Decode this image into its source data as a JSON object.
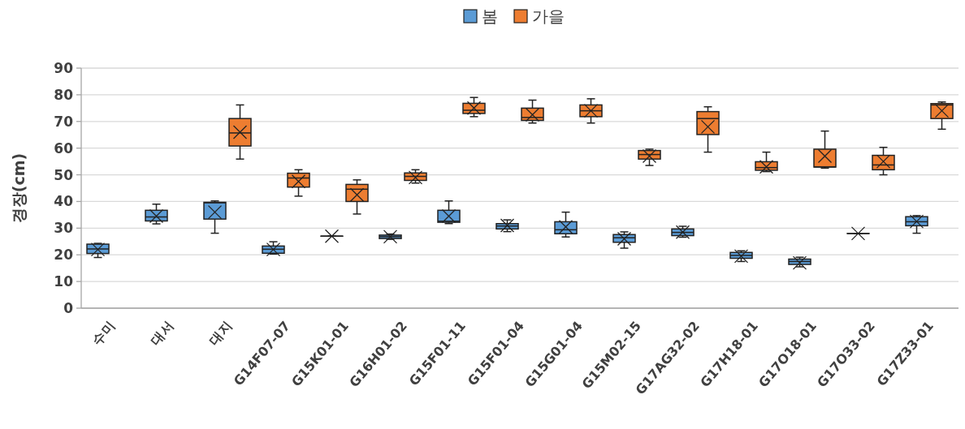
{
  "chart_data": {
    "type": "box",
    "ylabel": "경장(cm)",
    "categories": [
      "수미",
      "대서",
      "대지",
      "G14F07-07",
      "G15K01-01",
      "G16H01-02",
      "G15F01-11",
      "G15F01-04",
      "G15G01-04",
      "G15M02-15",
      "G17AG32-02",
      "G17H18-01",
      "G17O18-01",
      "G17O33-02",
      "G17Z33-01"
    ],
    "ylim": [
      0,
      90
    ],
    "yticks": [
      0,
      10,
      20,
      30,
      40,
      50,
      60,
      70,
      80,
      90
    ],
    "grid": "y",
    "legend": "top",
    "marker": "cross",
    "series": [
      {
        "name": "봄",
        "color": "#5b9bd5",
        "boxes": [
          {
            "low": 19,
            "q1": 20.5,
            "median": 22.2,
            "q3": 24,
            "high": 24.3,
            "mean": 22
          },
          {
            "low": 31.6,
            "q1": 32.7,
            "median": 34.2,
            "q3": 36.7,
            "high": 39,
            "mean": 34.5
          },
          {
            "low": 28.1,
            "q1": 33.4,
            "median": 39.5,
            "q3": 39.7,
            "high": 40.2,
            "mean": 36
          },
          {
            "low": 20.3,
            "q1": 20.6,
            "median": 22.1,
            "q3": 23.3,
            "high": 24.9,
            "mean": 22
          },
          {
            "low": 27,
            "q1": 27,
            "median": 27,
            "q3": 27,
            "high": 27,
            "mean": 27
          },
          {
            "low": 25.8,
            "q1": 26.1,
            "median": 26.8,
            "q3": 27.4,
            "high": 27.8,
            "mean": 26.8
          },
          {
            "low": 31.7,
            "q1": 32.2,
            "median": 32.6,
            "q3": 36.7,
            "high": 40.2,
            "mean": 34.5
          },
          {
            "low": 28.7,
            "q1": 29.7,
            "median": 30.8,
            "q3": 31.7,
            "high": 33.1,
            "mean": 31
          },
          {
            "low": 26.7,
            "q1": 27.9,
            "median": 29.4,
            "q3": 32.4,
            "high": 36,
            "mean": 30.5
          },
          {
            "low": 22.5,
            "q1": 24.7,
            "median": 26.4,
            "q3": 27.6,
            "high": 28.6,
            "mean": 26
          },
          {
            "low": 26.6,
            "q1": 27.2,
            "median": 28.4,
            "q3": 29.7,
            "high": 30.7,
            "mean": 28.5
          },
          {
            "low": 17.5,
            "q1": 18.7,
            "median": 19.8,
            "q3": 20.9,
            "high": 21.5,
            "mean": 19.5
          },
          {
            "low": 15.5,
            "q1": 16.4,
            "median": 17.5,
            "q3": 18.4,
            "high": 19.1,
            "mean": 17
          },
          {
            "low": 28,
            "q1": 28,
            "median": 28,
            "q3": 28,
            "high": 28,
            "mean": 28
          },
          {
            "low": 28.1,
            "q1": 30.9,
            "median": 32.4,
            "q3": 34.3,
            "high": 34.7,
            "mean": 32.5
          }
        ]
      },
      {
        "name": "가을",
        "color": "#ed7d31",
        "boxes": [
          null,
          null,
          {
            "low": 55.9,
            "q1": 60.8,
            "median": 65.7,
            "q3": 71.1,
            "high": 76.2,
            "mean": 66
          },
          {
            "low": 42,
            "q1": 45.4,
            "median": 48.8,
            "q3": 50.6,
            "high": 51.9,
            "mean": 47.5
          },
          {
            "low": 35.3,
            "q1": 40,
            "median": 44.6,
            "q3": 46.4,
            "high": 48.1,
            "mean": 42.5
          },
          {
            "low": 46.9,
            "q1": 47.9,
            "median": 49.4,
            "q3": 50.7,
            "high": 51.9,
            "mean": 49
          },
          {
            "low": 71.8,
            "q1": 73,
            "median": 74.2,
            "q3": 76.8,
            "high": 79,
            "mean": 75
          },
          {
            "low": 69.4,
            "q1": 70.4,
            "median": 71.5,
            "q3": 75,
            "high": 78,
            "mean": 72.5
          },
          {
            "low": 69.4,
            "q1": 71.8,
            "median": 74,
            "q3": 76.2,
            "high": 78.5,
            "mean": 74
          },
          {
            "low": 53.5,
            "q1": 55.9,
            "median": 57.6,
            "q3": 59.1,
            "high": 59.6,
            "mean": 57
          },
          {
            "low": 58.5,
            "q1": 65.1,
            "median": 71.1,
            "q3": 73.7,
            "high": 75.5,
            "mean": 68
          },
          {
            "low": 51.2,
            "q1": 51.7,
            "median": 52.7,
            "q3": 54.9,
            "high": 58.5,
            "mean": 53
          },
          {
            "low": 52.5,
            "q1": 52.9,
            "median": 53,
            "q3": 59.6,
            "high": 66.4,
            "mean": 57
          },
          {
            "low": 50,
            "q1": 51.9,
            "median": 53.7,
            "q3": 57.3,
            "high": 60.3,
            "mean": 55
          },
          {
            "low": 67.1,
            "q1": 71.1,
            "median": 76.2,
            "q3": 76.7,
            "high": 77.3,
            "mean": 74
          }
        ]
      }
    ]
  }
}
